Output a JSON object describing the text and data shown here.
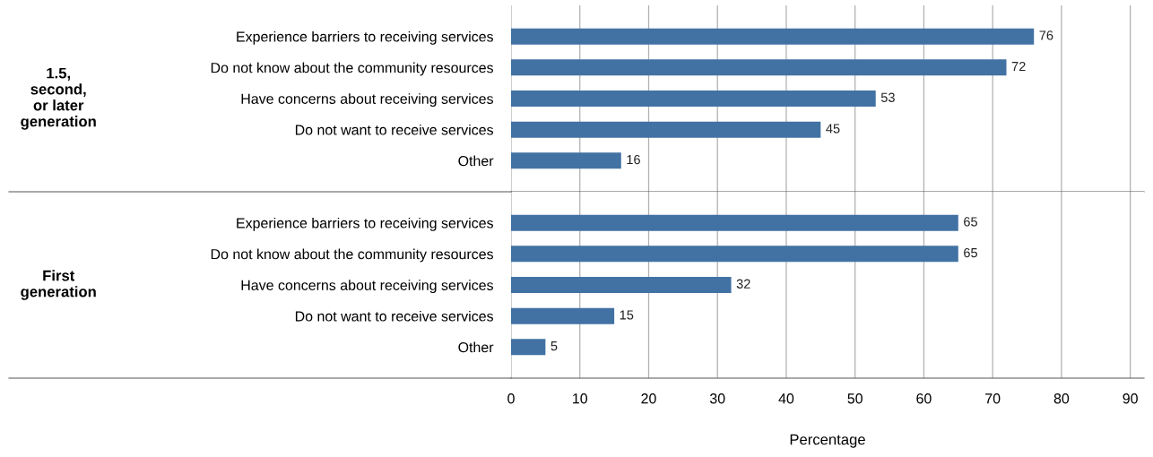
{
  "chart_data": [
    {
      "type": "bar",
      "orientation": "horizontal",
      "ylabel": "1.5,\nsecond,\nor later\ngeneration",
      "categories": [
        "Experience barriers to receiving services",
        "Do not know about the community resources",
        "Have concerns about receiving services",
        "Do not want to receive services",
        "Other"
      ],
      "values": [
        76,
        72,
        53,
        45,
        16
      ],
      "color": "#4272a3",
      "xlim": [
        0,
        92
      ],
      "xticks": [
        0,
        10,
        20,
        30,
        40,
        50,
        60,
        70,
        80,
        90
      ],
      "grid": "x",
      "data_labels": true,
      "tick_labels": "y"
    },
    {
      "type": "bar",
      "orientation": "horizontal",
      "ylabel": "First\ngeneration",
      "xlabel": "Percentage",
      "categories": [
        "Experience barriers to receiving services",
        "Do not know about the community resources",
        "Have concerns about receiving services",
        "Do not want to receive services",
        "Other"
      ],
      "values": [
        65,
        65,
        32,
        15,
        5
      ],
      "color": "#4272a3",
      "xlim": [
        0,
        92
      ],
      "xticks": [
        0,
        10,
        20,
        30,
        40,
        50,
        60,
        70,
        80,
        90
      ],
      "grid": "x",
      "data_labels": true
    }
  ]
}
